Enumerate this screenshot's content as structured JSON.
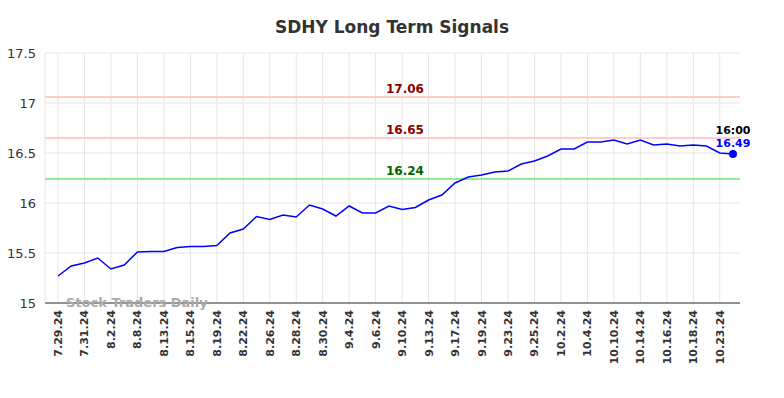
{
  "chart_data": {
    "type": "line",
    "title": "SDHY Long Term Signals",
    "categories": [
      "7.29.24",
      null,
      "7.31.24",
      null,
      "8.2.24",
      null,
      "8.8.24",
      null,
      "8.13.24",
      null,
      "8.15.24",
      null,
      "8.19.24",
      null,
      "8.22.24",
      null,
      "8.26.24",
      null,
      "8.28.24",
      null,
      "8.30.24",
      null,
      "9.4.24",
      null,
      "9.6.24",
      null,
      "9.10.24",
      null,
      "9.13.24",
      null,
      "9.17.24",
      null,
      "9.19.24",
      null,
      "9.23.24",
      null,
      "9.25.24",
      null,
      "10.2.24",
      null,
      "10.4.24",
      null,
      "10.10.24",
      null,
      "10.14.24",
      null,
      "10.16.24",
      null,
      "10.18.24",
      null,
      "10.23.24",
      null
    ],
    "values": [
      15.27,
      15.37,
      15.4,
      15.45,
      15.34,
      15.38,
      15.51,
      15.515,
      15.515,
      15.555,
      15.565,
      15.565,
      15.575,
      15.7,
      15.74,
      15.865,
      15.835,
      15.88,
      15.86,
      15.98,
      15.94,
      15.87,
      15.97,
      15.9,
      15.9,
      15.97,
      15.935,
      15.955,
      16.03,
      16.08,
      16.2,
      16.26,
      16.28,
      16.31,
      16.32,
      16.39,
      16.42,
      16.47,
      16.54,
      16.54,
      16.61,
      16.61,
      16.63,
      16.59,
      16.63,
      16.58,
      16.59,
      16.57,
      16.58,
      16.57,
      16.5,
      16.49
    ],
    "color": "#0000ff",
    "marker": "last",
    "ylim": [
      15,
      17.5
    ],
    "yticks": [
      15,
      15.5,
      16,
      16.5,
      17,
      17.5
    ],
    "grid": true,
    "reference_lines": [
      {
        "value": 17.06,
        "color": "red"
      },
      {
        "value": 16.65,
        "color": "red"
      },
      {
        "value": 16.24,
        "color": "green"
      }
    ],
    "annotations": {
      "last_time": "16:00",
      "watermark": "Stock Traders Daily"
    }
  }
}
